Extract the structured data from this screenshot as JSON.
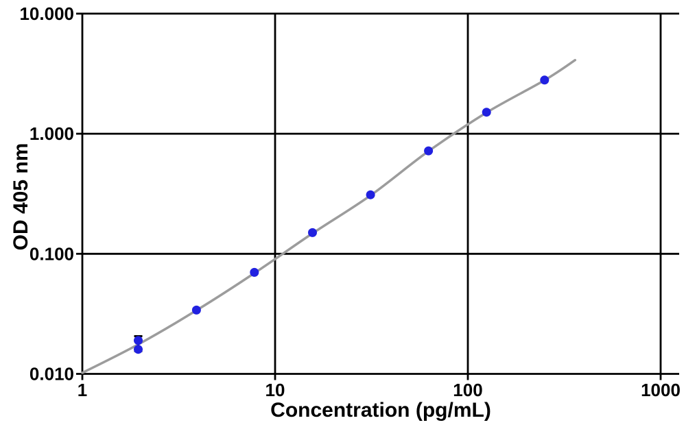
{
  "chart_data": {
    "type": "scatter",
    "title": "",
    "xlabel": "Concentration (pg/mL)",
    "ylabel": "OD 405 nm",
    "x_scale": "log",
    "y_scale": "log",
    "xlim": [
      1,
      1270
    ],
    "ylim": [
      0.01,
      10
    ],
    "grid": true,
    "legend": false,
    "x_ticks": [
      1,
      10,
      100,
      1000
    ],
    "x_tick_labels": [
      "1",
      "10",
      "100",
      "1000"
    ],
    "y_ticks": [
      0.01,
      0.1,
      1,
      10
    ],
    "y_tick_labels": [
      "0.010",
      "0.100",
      "1.000",
      "10.000"
    ],
    "series": [
      {
        "name": "standard-points",
        "marker": "circle",
        "color": "#2121e0",
        "points": [
          {
            "x": 1.95,
            "y": 0.019
          },
          {
            "x": 1.95,
            "y": 0.016
          },
          {
            "x": 3.91,
            "y": 0.034
          },
          {
            "x": 7.81,
            "y": 0.07
          },
          {
            "x": 15.63,
            "y": 0.15
          },
          {
            "x": 31.25,
            "y": 0.31
          },
          {
            "x": 62.5,
            "y": 0.72
          },
          {
            "x": 125,
            "y": 1.51
          },
          {
            "x": 250,
            "y": 2.8
          }
        ]
      }
    ],
    "error_bars": [
      {
        "x": 1.95,
        "y_low": 0.0155,
        "y_high": 0.0206
      }
    ],
    "fit_curve": {
      "name": "fit-line",
      "color": "#9c9c9c",
      "points": [
        [
          1,
          0.0102
        ],
        [
          1.95,
          0.0176
        ],
        [
          3.91,
          0.0338
        ],
        [
          7.81,
          0.069
        ],
        [
          15.63,
          0.148
        ],
        [
          31.25,
          0.306
        ],
        [
          62.5,
          0.715
        ],
        [
          125,
          1.5
        ],
        [
          250,
          2.79
        ],
        [
          360,
          4.1
        ]
      ]
    },
    "colors": {
      "point": "#2121e0",
      "curve": "#9c9c9c",
      "grid": "#000000",
      "text": "#000000",
      "background": "#ffffff"
    }
  }
}
